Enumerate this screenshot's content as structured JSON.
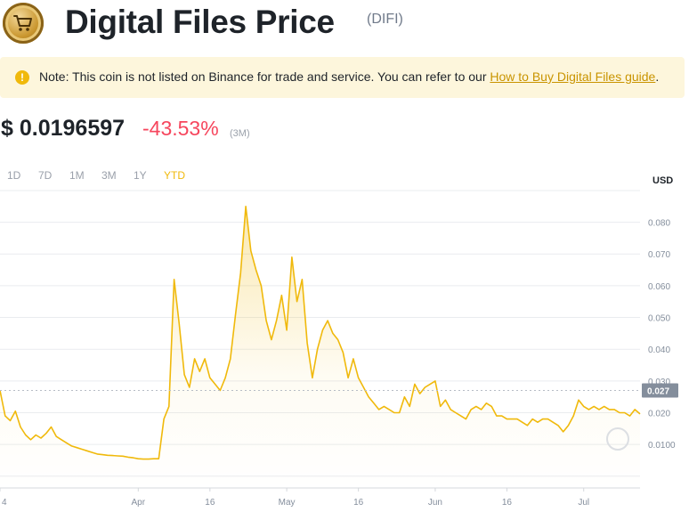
{
  "header": {
    "title": "Digital Files Price",
    "ticker": "(DIFI)"
  },
  "note": {
    "text": "Note: This coin is not listed on Binance for trade and service. You can refer to our ",
    "link": "How to Buy Digital Files guide",
    "suffix": "."
  },
  "price": {
    "value": "$ 0.0196597",
    "change": "-43.53%",
    "period": "(3M)"
  },
  "ranges": [
    {
      "label": "1D",
      "active": false
    },
    {
      "label": "7D",
      "active": false
    },
    {
      "label": "1M",
      "active": false
    },
    {
      "label": "3M",
      "active": false
    },
    {
      "label": "1Y",
      "active": false
    },
    {
      "label": "YTD",
      "active": true
    }
  ],
  "colors": {
    "line": "#f0b90b",
    "negative": "#f6465d",
    "grid": "#eaecef",
    "current_tag": "#848e9c"
  },
  "chart_data": {
    "type": "area",
    "currency": "USD",
    "ylim": [
      -0.0037,
      0.0883
    ],
    "y_ticks": [
      0.01,
      0.02,
      0.03,
      0.04,
      0.05,
      0.06,
      0.07,
      0.08
    ],
    "y_tick_labels": [
      "0.0100",
      "0.020",
      "0.030",
      "0.040",
      "0.050",
      "0.060",
      "0.070",
      "0.080"
    ],
    "current_value": 0.027,
    "current_label": "0.027",
    "x_tick_labels": [
      "4",
      "Apr",
      "16",
      "May",
      "16",
      "Jun",
      "16",
      "Jul"
    ],
    "x_tick_positions": [
      0,
      27,
      41,
      56,
      70,
      85,
      99,
      114
    ],
    "grid": true,
    "x": [
      0,
      1,
      2,
      3,
      4,
      5,
      6,
      7,
      8,
      9,
      10,
      11,
      12,
      13,
      14,
      15,
      16,
      17,
      18,
      19,
      20,
      21,
      22,
      23,
      24,
      25,
      26,
      27,
      28,
      29,
      30,
      31,
      32,
      33,
      34,
      35,
      36,
      37,
      38,
      39,
      40,
      41,
      42,
      43,
      44,
      45,
      46,
      47,
      48,
      49,
      50,
      51,
      52,
      53,
      54,
      55,
      56,
      57,
      58,
      59,
      60,
      61,
      62,
      63,
      64,
      65,
      66,
      67,
      68,
      69,
      70,
      71,
      72,
      73,
      74,
      75,
      76,
      77,
      78,
      79,
      80,
      81,
      82,
      83,
      84,
      85,
      86,
      87,
      88,
      89,
      90,
      91,
      92,
      93,
      94,
      95,
      96,
      97,
      98,
      99,
      100,
      101,
      102,
      103,
      104,
      105,
      106,
      107,
      108,
      109,
      110,
      111,
      112,
      113,
      114,
      115,
      116,
      117,
      118,
      119,
      120,
      121,
      122,
      123,
      124,
      125
    ],
    "y": [
      0.027,
      0.019,
      0.0175,
      0.0205,
      0.0155,
      0.013,
      0.0115,
      0.013,
      0.012,
      0.0135,
      0.0155,
      0.0125,
      0.0115,
      0.0105,
      0.0095,
      0.009,
      0.0085,
      0.008,
      0.0075,
      0.007,
      0.0068,
      0.0066,
      0.0065,
      0.0064,
      0.0063,
      0.006,
      0.0058,
      0.0055,
      0.0054,
      0.0054,
      0.0055,
      0.0055,
      0.018,
      0.022,
      0.062,
      0.048,
      0.032,
      0.028,
      0.037,
      0.033,
      0.037,
      0.031,
      0.029,
      0.027,
      0.031,
      0.037,
      0.051,
      0.064,
      0.085,
      0.071,
      0.065,
      0.06,
      0.049,
      0.043,
      0.049,
      0.057,
      0.046,
      0.069,
      0.055,
      0.062,
      0.042,
      0.031,
      0.04,
      0.046,
      0.049,
      0.045,
      0.043,
      0.039,
      0.031,
      0.037,
      0.031,
      0.028,
      0.025,
      0.023,
      0.021,
      0.022,
      0.021,
      0.02,
      0.02,
      0.025,
      0.022,
      0.029,
      0.026,
      0.028,
      0.029,
      0.03,
      0.022,
      0.024,
      0.021,
      0.02,
      0.019,
      0.018,
      0.021,
      0.022,
      0.021,
      0.023,
      0.022,
      0.019,
      0.019,
      0.018,
      0.018,
      0.018,
      0.017,
      0.016,
      0.018,
      0.017,
      0.018,
      0.018,
      0.017,
      0.016,
      0.014,
      0.016,
      0.019,
      0.024,
      0.022,
      0.021,
      0.022,
      0.021,
      0.022,
      0.021,
      0.021,
      0.02,
      0.02,
      0.019,
      0.021,
      0.0196
    ]
  }
}
